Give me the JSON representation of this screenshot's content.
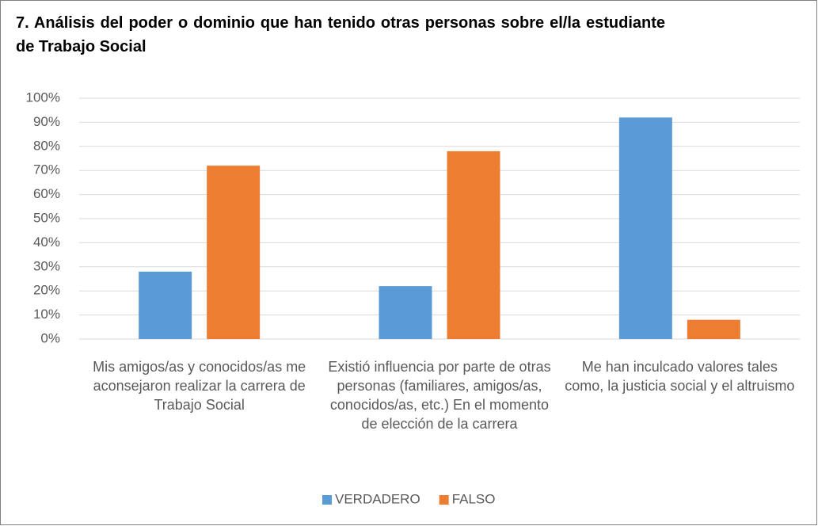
{
  "chart_data": {
    "type": "bar",
    "title": "7. Análisis del poder o dominio que han tenido otras personas sobre el/la estudiante de Trabajo Social",
    "categories": [
      "Mis amigos/as y conocidos/as me aconsejaron realizar la carrera de Trabajo Social",
      "Existió influencia por parte de otras personas (familiares, amigos/as, conocidos/as, etc.) En el momento de elección de la carrera",
      "Me han inculcado valores tales como, la justicia social y el altruismo"
    ],
    "series": [
      {
        "name": "VERDADERO",
        "color": "#5b9bd5",
        "values": [
          28,
          22,
          92
        ]
      },
      {
        "name": "FALSO",
        "color": "#ed7d31",
        "values": [
          72,
          78,
          8
        ]
      }
    ],
    "ylim": [
      0,
      100
    ],
    "yticks": [
      {
        "value": 0,
        "label": "0%"
      },
      {
        "value": 10,
        "label": "10%"
      },
      {
        "value": 20,
        "label": "20%"
      },
      {
        "value": 30,
        "label": "30%"
      },
      {
        "value": 40,
        "label": "40%"
      },
      {
        "value": 50,
        "label": "50%"
      },
      {
        "value": 60,
        "label": "60%"
      },
      {
        "value": 70,
        "label": "70%"
      },
      {
        "value": 80,
        "label": "80%"
      },
      {
        "value": 90,
        "label": "90%"
      },
      {
        "value": 100,
        "label": "100%"
      }
    ],
    "grid": true,
    "legend": "bottom"
  }
}
